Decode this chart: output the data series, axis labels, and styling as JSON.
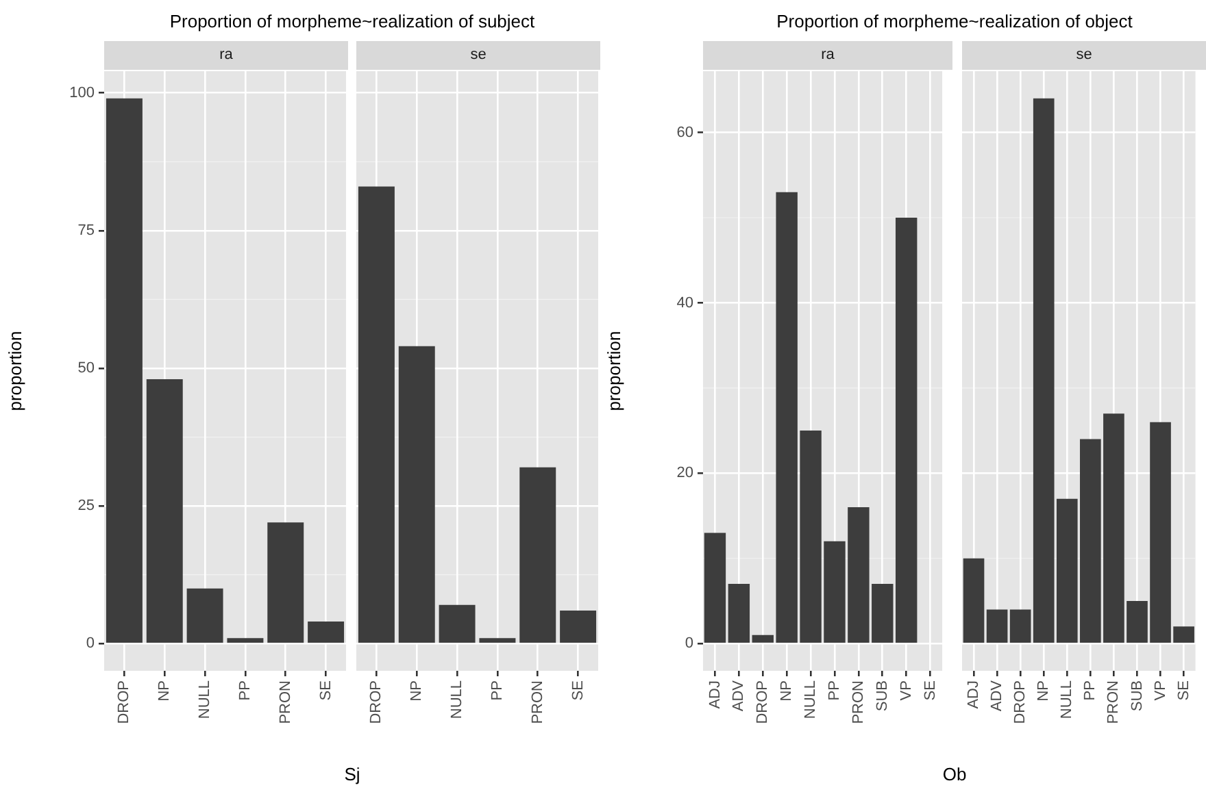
{
  "chart_data": [
    {
      "type": "bar",
      "title": "Proportion of morpheme~realization of subject",
      "subtitle": "ra",
      "xlabel": "Sj",
      "ylabel": "proportion",
      "categories": [
        "DROP",
        "NP",
        "NULL",
        "PP",
        "PRON",
        "SE"
      ],
      "values": [
        99,
        48,
        10,
        1,
        22,
        4
      ],
      "color": "#3d3d3d",
      "ylim": [
        -4.95,
        103.95
      ],
      "yticks": [
        0,
        25,
        50,
        75,
        100
      ],
      "grid": true
    },
    {
      "type": "bar",
      "subtitle": "se",
      "categories": [
        "DROP",
        "NP",
        "NULL",
        "PP",
        "PRON",
        "SE"
      ],
      "values": [
        83,
        54,
        7,
        1,
        32,
        6
      ],
      "color": "#3d3d3d",
      "ylim": [
        -4.95,
        103.95
      ],
      "yticks": [
        0,
        25,
        50,
        75,
        100
      ],
      "grid": true,
      "tick_labels": "x"
    },
    {
      "type": "bar",
      "title": "Proportion of morpheme~realization of object",
      "subtitle": "ra",
      "xlabel": "Ob",
      "ylabel": "proportion",
      "categories": [
        "ADJ",
        "ADV",
        "DROP",
        "NP",
        "NULL",
        "PP",
        "PRON",
        "SUB",
        "VP",
        "SE"
      ],
      "values": [
        13,
        7,
        1,
        53,
        25,
        12,
        16,
        7,
        50,
        null
      ],
      "color": "#3d3d3d",
      "ylim": [
        -3.2,
        67.2
      ],
      "yticks": [
        0,
        20,
        40,
        60
      ],
      "grid": true
    },
    {
      "type": "bar",
      "subtitle": "se",
      "categories": [
        "ADJ",
        "ADV",
        "DROP",
        "NP",
        "NULL",
        "PP",
        "PRON",
        "SUB",
        "VP",
        "SE"
      ],
      "values": [
        10,
        4,
        4,
        64,
        17,
        24,
        27,
        5,
        26,
        2
      ],
      "color": "#3d3d3d",
      "ylim": [
        -3.2,
        67.2
      ],
      "yticks": [
        0,
        20,
        40,
        60
      ],
      "grid": true,
      "tick_labels": "x"
    }
  ]
}
